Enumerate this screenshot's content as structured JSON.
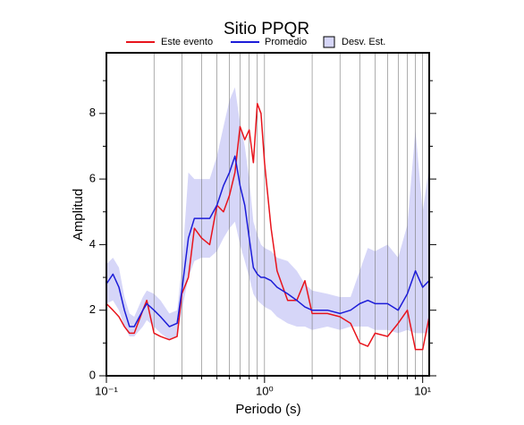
{
  "chart_data": {
    "type": "line",
    "title": "Sitio PPQR",
    "xlabel": "Periodo (s)",
    "ylabel": "Amplitud",
    "xscale": "log",
    "xlim": [
      0.1,
      11
    ],
    "ylim": [
      0,
      9.85
    ],
    "xticks": [
      {
        "value": 0.1,
        "label": "10⁻¹"
      },
      {
        "value": 1,
        "label": "10⁰"
      },
      {
        "value": 10,
        "label": "10¹"
      }
    ],
    "xminorticks": [
      0.2,
      0.3,
      0.4,
      0.5,
      0.6,
      0.7,
      0.8,
      0.9,
      2,
      3,
      4,
      5,
      6,
      7,
      8,
      9
    ],
    "yticks": [
      0,
      2,
      4,
      6,
      8
    ],
    "yminorticks": [
      1,
      3,
      5,
      7,
      9
    ],
    "x": [
      0.1,
      0.11,
      0.12,
      0.13,
      0.14,
      0.15,
      0.17,
      0.18,
      0.2,
      0.22,
      0.25,
      0.28,
      0.3,
      0.33,
      0.36,
      0.4,
      0.45,
      0.5,
      0.55,
      0.6,
      0.65,
      0.7,
      0.75,
      0.8,
      0.85,
      0.9,
      0.95,
      1.0,
      1.1,
      1.2,
      1.4,
      1.6,
      1.8,
      2,
      2.5,
      3,
      3.5,
      4,
      4.5,
      5,
      6,
      7,
      8,
      9,
      10,
      11
    ],
    "band": {
      "name": "Desv. Est.",
      "color": "#d6d6f8",
      "lower": [
        2.2,
        2.3,
        2.0,
        1.5,
        1.2,
        1.2,
        1.5,
        1.7,
        1.5,
        1.3,
        1.1,
        1.2,
        2.0,
        3.0,
        3.5,
        3.6,
        3.6,
        3.8,
        4.2,
        4.5,
        4.7,
        4.0,
        3.5,
        3.0,
        2.5,
        2.3,
        2.2,
        2.1,
        2.0,
        1.8,
        1.6,
        1.5,
        1.5,
        1.4,
        1.5,
        1.4,
        1.5,
        1.5,
        1.5,
        1.4,
        1.4,
        1.3,
        1.4,
        1.3,
        1.3,
        1.3
      ],
      "upper": [
        3.4,
        3.6,
        3.3,
        2.4,
        1.9,
        1.8,
        2.4,
        2.6,
        2.5,
        2.3,
        1.9,
        2.0,
        3.3,
        6.2,
        6.0,
        6.0,
        6.0,
        6.7,
        7.6,
        8.4,
        8.8,
        7.7,
        7.0,
        6.0,
        4.7,
        4.3,
        4.0,
        3.9,
        3.8,
        3.6,
        3.5,
        3.2,
        2.8,
        2.6,
        2.5,
        2.4,
        2.4,
        3.2,
        3.9,
        3.8,
        4.0,
        3.6,
        4.6,
        7.5,
        5.0,
        6.4
      ]
    },
    "series": [
      {
        "name": "Este evento",
        "color": "#e8141c",
        "values": [
          2.2,
          2.0,
          1.8,
          1.5,
          1.3,
          1.3,
          2.0,
          2.3,
          1.3,
          1.2,
          1.1,
          1.2,
          2.5,
          3.0,
          4.5,
          4.2,
          4.0,
          5.2,
          5.0,
          5.5,
          6.2,
          7.6,
          7.2,
          7.5,
          6.5,
          8.3,
          8.0,
          6.5,
          4.5,
          3.2,
          2.3,
          2.3,
          2.9,
          1.9,
          1.9,
          1.8,
          1.6,
          1.0,
          0.9,
          1.3,
          1.2,
          1.6,
          2.0,
          0.8,
          0.8,
          1.8
        ]
      },
      {
        "name": "Promedio",
        "color": "#1c1cd8",
        "values": [
          2.8,
          3.1,
          2.7,
          2.0,
          1.5,
          1.5,
          2.0,
          2.2,
          2.0,
          1.8,
          1.5,
          1.6,
          2.6,
          4.2,
          4.8,
          4.8,
          4.8,
          5.2,
          5.8,
          6.2,
          6.7,
          5.8,
          5.2,
          4.2,
          3.3,
          3.1,
          3.0,
          3.0,
          2.9,
          2.7,
          2.5,
          2.3,
          2.1,
          2.0,
          2.0,
          1.9,
          2.0,
          2.2,
          2.3,
          2.2,
          2.2,
          2.0,
          2.5,
          3.2,
          2.7,
          2.9
        ]
      }
    ]
  }
}
